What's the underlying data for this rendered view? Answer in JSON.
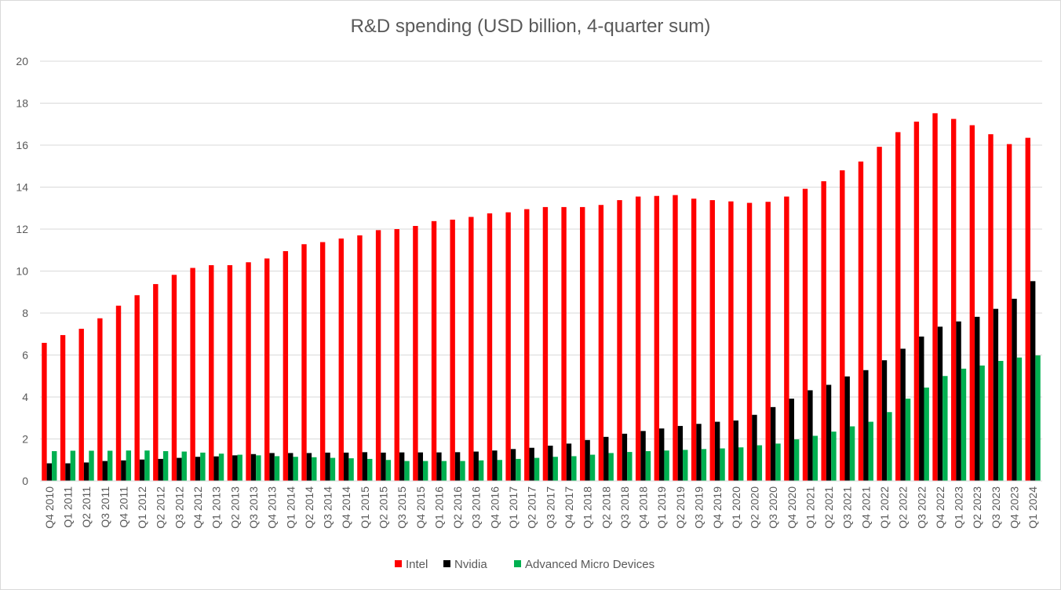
{
  "chart_data": {
    "type": "bar",
    "title": "R&D spending (USD billion, 4-quarter sum)",
    "xlabel": "",
    "ylabel": "",
    "ylim": [
      0,
      20
    ],
    "yticks": [
      0,
      2,
      4,
      6,
      8,
      10,
      12,
      14,
      16,
      18,
      20
    ],
    "grid": true,
    "legend_position": "bottom",
    "categories": [
      "Q4 2010",
      "Q1 2011",
      "Q2 2011",
      "Q3 2011",
      "Q4 2011",
      "Q1 2012",
      "Q2 2012",
      "Q3 2012",
      "Q4 2012",
      "Q1 2013",
      "Q2 2013",
      "Q3 2013",
      "Q4 2013",
      "Q1 2014",
      "Q2 2014",
      "Q3 2014",
      "Q4 2014",
      "Q1 2015",
      "Q2 2015",
      "Q3 2015",
      "Q4 2015",
      "Q1 2016",
      "Q2 2016",
      "Q3 2016",
      "Q4 2016",
      "Q1 2017",
      "Q2 2017",
      "Q3 2017",
      "Q4 2017",
      "Q1 2018",
      "Q2 2018",
      "Q3 2018",
      "Q4 2018",
      "Q1 2019",
      "Q2 2019",
      "Q3 2019",
      "Q4 2019",
      "Q1 2020",
      "Q2 2020",
      "Q3 2020",
      "Q4 2020",
      "Q1 2021",
      "Q2 2021",
      "Q3 2021",
      "Q4 2021",
      "Q1 2022",
      "Q2 2022",
      "Q3 2022",
      "Q4 2022",
      "Q1 2023",
      "Q2 2023",
      "Q3 2023",
      "Q4 2023",
      "Q1 2024"
    ],
    "series": [
      {
        "name": "Intel",
        "color": "#ff0000",
        "values": [
          6.58,
          6.95,
          7.25,
          7.75,
          8.35,
          8.85,
          9.38,
          9.82,
          10.15,
          10.28,
          10.28,
          10.42,
          10.6,
          10.95,
          11.28,
          11.38,
          11.55,
          11.7,
          11.95,
          12.0,
          12.15,
          12.38,
          12.45,
          12.58,
          12.75,
          12.8,
          12.95,
          13.05,
          13.05,
          13.05,
          13.15,
          13.38,
          13.55,
          13.58,
          13.62,
          13.45,
          13.38,
          13.32,
          13.25,
          13.3,
          13.55,
          13.92,
          14.28,
          14.8,
          15.22,
          15.92,
          16.62,
          17.12,
          17.52,
          17.25,
          16.95,
          16.52,
          16.05,
          16.35
        ]
      },
      {
        "name": "Nvidia",
        "color": "#000000",
        "values": [
          0.84,
          0.84,
          0.88,
          0.95,
          0.98,
          1.02,
          1.05,
          1.1,
          1.15,
          1.17,
          1.22,
          1.28,
          1.33,
          1.33,
          1.33,
          1.35,
          1.35,
          1.37,
          1.35,
          1.36,
          1.36,
          1.36,
          1.37,
          1.4,
          1.45,
          1.52,
          1.58,
          1.68,
          1.78,
          1.95,
          2.1,
          2.25,
          2.38,
          2.5,
          2.62,
          2.72,
          2.82,
          2.88,
          3.15,
          3.52,
          3.92,
          4.32,
          4.58,
          4.98,
          5.28,
          5.75,
          6.3,
          6.88,
          7.35,
          7.6,
          7.82,
          8.2,
          8.68,
          9.52
        ]
      },
      {
        "name": "Advanced Micro Devices",
        "color": "#00b050",
        "values": [
          1.42,
          1.44,
          1.44,
          1.44,
          1.45,
          1.45,
          1.42,
          1.4,
          1.35,
          1.3,
          1.25,
          1.22,
          1.18,
          1.15,
          1.13,
          1.1,
          1.08,
          1.05,
          1.0,
          0.95,
          0.95,
          0.95,
          0.95,
          0.98,
          1.0,
          1.05,
          1.1,
          1.15,
          1.18,
          1.25,
          1.33,
          1.38,
          1.42,
          1.45,
          1.48,
          1.52,
          1.55,
          1.6,
          1.7,
          1.78,
          1.98,
          2.15,
          2.35,
          2.6,
          2.82,
          3.28,
          3.92,
          4.45,
          5.0,
          5.35,
          5.5,
          5.72,
          5.88,
          5.98
        ]
      }
    ]
  }
}
